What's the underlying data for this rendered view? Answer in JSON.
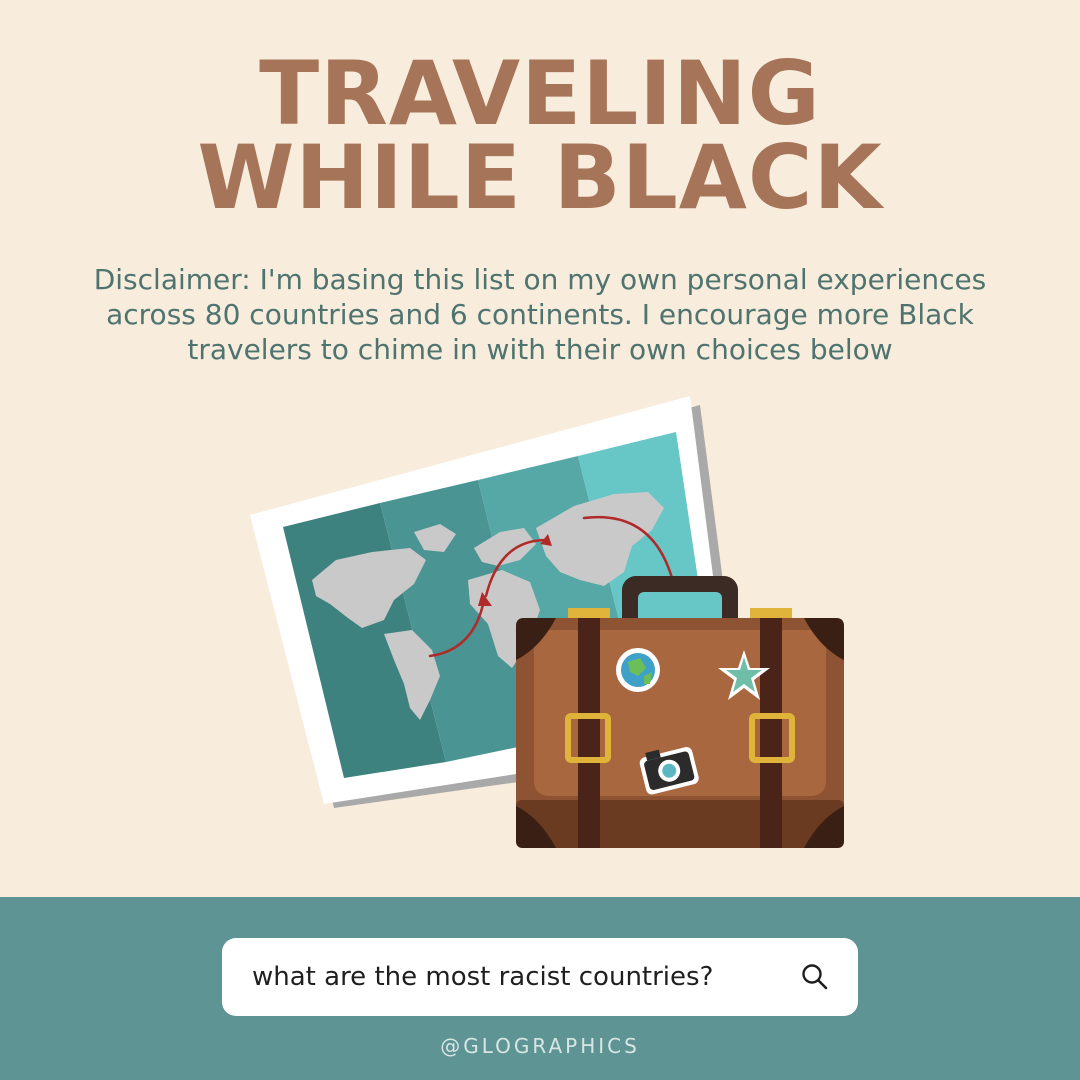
{
  "title": {
    "line1": "TRAVELING",
    "line2": "WHILE BLACK"
  },
  "disclaimer": {
    "line1": "Disclaimer: I'm basing this list on my own personal experiences",
    "line2": "across 80 countries and 6 continents. I encourage more Black",
    "line3": "travelers to chime in with their own choices below"
  },
  "search": {
    "query": "what are the most racist countries?",
    "icon": "search-icon"
  },
  "footer": {
    "handle": "@GLOGRAPHICS"
  },
  "colors": {
    "background": "#f8ecdc",
    "title": "#a67458",
    "disclaimer": "#4f7470",
    "footer": "#5e9494",
    "searchbar": "#ffffff"
  }
}
